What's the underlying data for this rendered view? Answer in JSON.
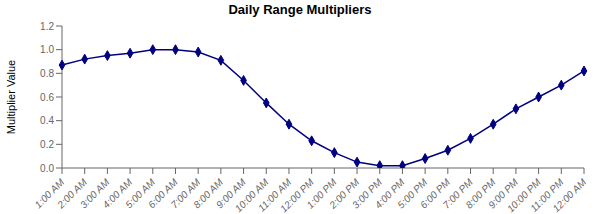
{
  "chart_data": {
    "type": "line",
    "title": "Daily Range Multipliers",
    "y_label": "Multiplier Value",
    "categories": [
      "1:00 AM",
      "2:00 AM",
      "3:00 AM",
      "4:00 AM",
      "5:00 AM",
      "6:00 AM",
      "7:00 AM",
      "8:00 AM",
      "9:00 AM",
      "10:00 AM",
      "11:00 AM",
      "12:00 PM",
      "1:00 PM",
      "2:00 PM",
      "3:00 PM",
      "4:00 PM",
      "5:00 PM",
      "6:00 PM",
      "7:00 PM",
      "8:00 PM",
      "9:00 PM",
      "10:00 PM",
      "11:00 PM",
      "12:00 AM"
    ],
    "values": [
      0.87,
      0.92,
      0.95,
      0.97,
      1.0,
      1.0,
      0.98,
      0.91,
      0.74,
      0.55,
      0.37,
      0.23,
      0.13,
      0.05,
      0.02,
      0.02,
      0.08,
      0.15,
      0.25,
      0.37,
      0.5,
      0.6,
      0.7,
      0.82
    ],
    "color": "#000080",
    "marker": "diamond",
    "ylim": [
      0,
      1.2
    ],
    "yticks": [
      {
        "value": 0,
        "label": "0.0"
      },
      0.2,
      0.4,
      0.6,
      0.8,
      {
        "value": 1.0,
        "label": "1.0"
      },
      1.2
    ],
    "grid": false
  }
}
